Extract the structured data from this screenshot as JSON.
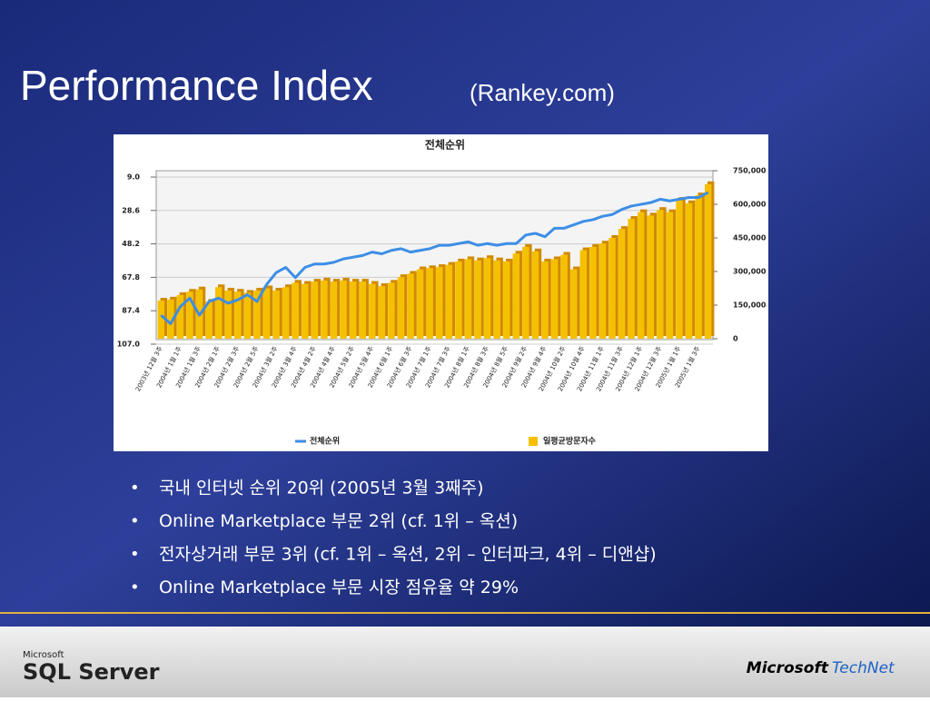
{
  "header": {
    "title": "Performance Index",
    "subtitle": "(Rankey.com)"
  },
  "chart_data": {
    "type": "bar",
    "title": "전체순위",
    "categories": [
      "2003년 12월 3주",
      null,
      "2004년 1월 1주",
      null,
      "2004년 1월 3주",
      null,
      "2004년 2월 1주",
      null,
      "2004년 2월 3주",
      null,
      "2004년 2월 5주",
      null,
      "2004년 3월 2주",
      null,
      "2004년 3월 4주",
      null,
      "2004년 4월 2주",
      null,
      "2004년 4월 4주",
      null,
      "2004년 5월 2주",
      null,
      "2004년 5월 4주",
      null,
      "2004년 6월 1주",
      null,
      "2004년 6월 3주",
      null,
      "2004년 7월 1주",
      null,
      "2004년 7월 3주",
      null,
      "2004년 8월 1주",
      null,
      "2004년 8월 3주",
      null,
      "2004년 8월 5주",
      null,
      "2004년 9월 2주",
      null,
      "2004년 9월 4주",
      null,
      "2004년 10월 2주",
      null,
      "2004년 10월 4주",
      null,
      "2004년 11월 1주",
      null,
      "2004년 11월 3주",
      null,
      "2004년 12월 1주",
      null,
      "2004년 12월 3주",
      null,
      "2005년 1월 1주",
      null,
      "2005년 1월 3주",
      null
    ],
    "series": [
      {
        "name": "전체순위",
        "type": "line",
        "color": "#3d8ee6",
        "axis": "y",
        "values": [
          90,
          95,
          85,
          80,
          90,
          82,
          80,
          83,
          81,
          78,
          82,
          72,
          65,
          62,
          68,
          62,
          60,
          60,
          59,
          57,
          56,
          55,
          53,
          54,
          52,
          51,
          53,
          52,
          51,
          49,
          49,
          48,
          47,
          49,
          48,
          49,
          48,
          48,
          43,
          42,
          44,
          39,
          39,
          37,
          35,
          34,
          32,
          31,
          28,
          26,
          25,
          24,
          22,
          23,
          22,
          21,
          21,
          18
        ]
      },
      {
        "name": "일평균방문자수",
        "type": "bar",
        "color": "#f5c000",
        "axis": "y2",
        "values": [
          170000,
          175000,
          195000,
          210000,
          220000,
          165000,
          230000,
          215000,
          210000,
          205000,
          215000,
          225000,
          215000,
          230000,
          250000,
          245000,
          255000,
          260000,
          255000,
          260000,
          255000,
          255000,
          245000,
          235000,
          250000,
          275000,
          290000,
          310000,
          315000,
          320000,
          330000,
          345000,
          355000,
          350000,
          360000,
          350000,
          345000,
          380000,
          410000,
          390000,
          345000,
          355000,
          375000,
          310000,
          395000,
          410000,
          425000,
          450000,
          490000,
          535000,
          565000,
          550000,
          575000,
          565000,
          620000,
          605000,
          640000,
          690000
        ]
      }
    ],
    "ylim": [
      {
        "value": 107,
        "label": "107.0"
      },
      {
        "value": 9,
        "label": "9.0"
      }
    ],
    "yticks": [
      {
        "value": 9,
        "label": "9.0"
      },
      28.6,
      48.2,
      67.8,
      87.4,
      {
        "value": 107,
        "label": "107.0"
      }
    ],
    "y2lim": [
      0,
      750000
    ],
    "y2ticks": [
      0,
      {
        "value": 150000,
        "label": "150,000"
      },
      {
        "value": 300000,
        "label": "300,000"
      },
      {
        "value": 450000,
        "label": "450,000"
      },
      {
        "value": 600000,
        "label": "600,000"
      },
      {
        "value": 750000,
        "label": "750,000"
      }
    ],
    "grid": true,
    "legend": "bottom"
  },
  "bullets": [
    "국내 인터넷 순위 20위 (2005년 3월 3째주)",
    "Online Marketplace 부문 2위 (cf. 1위 – 옥션)",
    "전자상거래 부문 3위 (cf. 1위 – 옥션, 2위 – 인터파크, 4위 – 디앤샵)",
    "Online Marketplace 부문 시장 점유율 약 29%"
  ],
  "footer": {
    "left_small": "Microsoft",
    "left": "SQL Server",
    "right_brand": "Microsoft",
    "right_product": "TechNet"
  }
}
